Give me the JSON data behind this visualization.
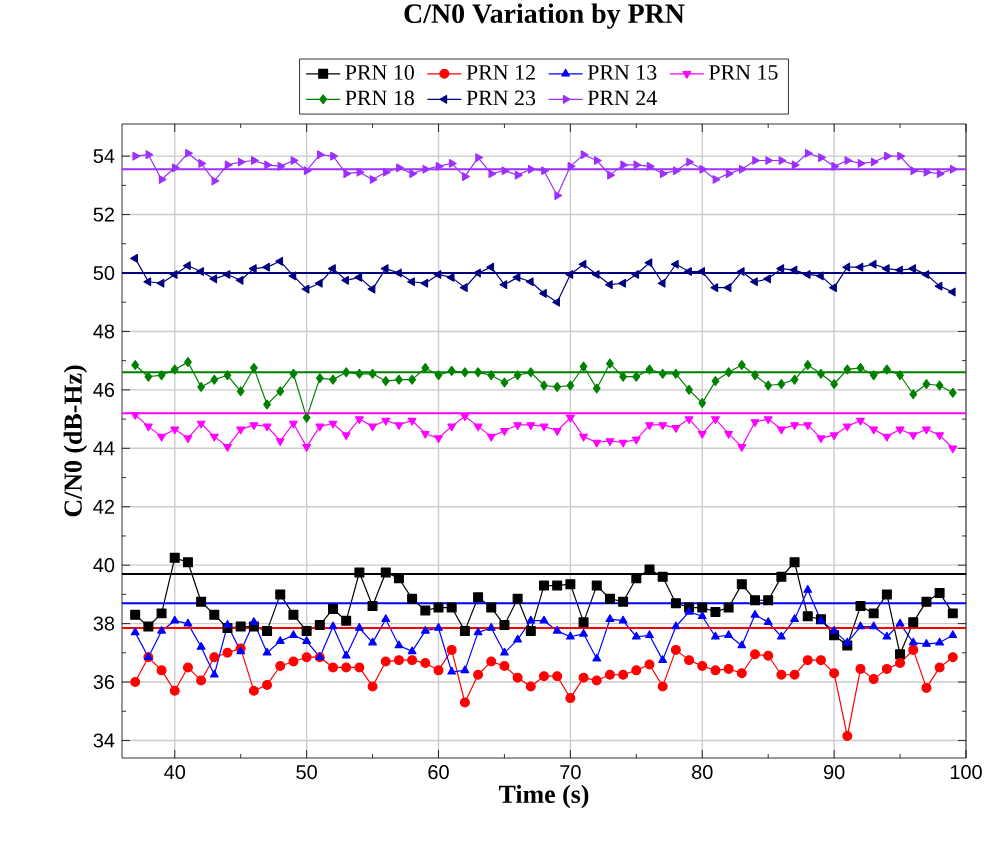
{
  "chart_data": {
    "type": "line",
    "title": "C/N0 Variation by PRN",
    "xlabel": "Time (s)",
    "ylabel": "C/N0 (dB-Hz)",
    "x": [
      37,
      38,
      39,
      40,
      41,
      42,
      43,
      44,
      45,
      46,
      47,
      48,
      49,
      50,
      51,
      52,
      53,
      54,
      55,
      56,
      57,
      58,
      59,
      60,
      61,
      62,
      63,
      64,
      65,
      66,
      67,
      68,
      69,
      70,
      71,
      72,
      73,
      74,
      75,
      76,
      77,
      78,
      79,
      80,
      81,
      82,
      83,
      84,
      85,
      86,
      87,
      88,
      89,
      90,
      91,
      92,
      93,
      94,
      95,
      96,
      97,
      98,
      99
    ],
    "xlim": [
      36,
      100
    ],
    "ylim": [
      33.4,
      55.1
    ],
    "xticks": [
      40,
      50,
      60,
      70,
      80,
      90,
      100
    ],
    "yticks": [
      34,
      36,
      38,
      40,
      42,
      44,
      46,
      48,
      50,
      52,
      54
    ],
    "grid": true,
    "legend": "top",
    "line_style": "solid",
    "series": [
      {
        "name": "PRN 10",
        "color": "#000000",
        "marker": "square",
        "values": [
          38.3,
          37.9,
          38.35,
          40.25,
          40.1,
          38.75,
          38.3,
          37.85,
          37.9,
          37.9,
          37.75,
          39.0,
          38.3,
          37.75,
          37.95,
          38.5,
          38.1,
          39.75,
          38.6,
          39.75,
          39.55,
          38.85,
          38.45,
          38.55,
          38.55,
          37.75,
          38.9,
          38.55,
          37.95,
          38.85,
          37.75,
          39.3,
          39.3,
          39.35,
          38.05,
          39.3,
          38.85,
          38.75,
          39.55,
          39.85,
          39.6,
          38.7,
          38.55,
          38.55,
          38.4,
          38.55,
          39.35,
          38.8,
          38.8,
          39.6,
          40.1,
          38.25,
          38.15,
          37.6,
          37.25,
          38.6,
          38.35,
          39.0,
          36.95,
          38.05,
          38.75,
          39.05,
          38.35
        ]
      },
      {
        "name": "PRN 12",
        "color": "#ff0000",
        "marker": "circle",
        "values": [
          36.0,
          36.85,
          36.4,
          35.7,
          36.5,
          36.05,
          36.85,
          37.0,
          37.15,
          35.7,
          35.9,
          36.55,
          36.7,
          36.85,
          36.85,
          36.5,
          36.5,
          36.5,
          35.85,
          36.7,
          36.75,
          36.75,
          36.65,
          36.4,
          37.1,
          35.3,
          36.25,
          36.7,
          36.55,
          36.15,
          35.85,
          36.2,
          36.2,
          35.45,
          36.15,
          36.05,
          36.25,
          36.25,
          36.4,
          36.6,
          35.85,
          37.1,
          36.75,
          36.55,
          36.4,
          36.45,
          36.3,
          36.95,
          36.9,
          36.25,
          36.25,
          36.75,
          36.75,
          36.3,
          34.15,
          36.45,
          36.1,
          36.45,
          36.65,
          37.1,
          35.8,
          36.5,
          36.85
        ]
      },
      {
        "name": "PRN 13",
        "color": "#0000ff",
        "marker": "triangle",
        "values": [
          37.7,
          36.85,
          37.75,
          38.1,
          38.0,
          37.2,
          36.25,
          37.95,
          37.05,
          38.05,
          37.0,
          37.4,
          37.6,
          37.4,
          36.85,
          37.9,
          36.9,
          37.85,
          37.35,
          38.15,
          37.25,
          37.05,
          37.75,
          37.85,
          36.35,
          36.4,
          37.7,
          37.85,
          37.0,
          37.45,
          38.1,
          38.1,
          37.75,
          37.55,
          37.65,
          36.8,
          38.15,
          38.1,
          37.55,
          37.6,
          36.75,
          37.9,
          38.4,
          38.25,
          37.55,
          37.6,
          37.25,
          38.3,
          38.05,
          37.55,
          38.15,
          39.15,
          38.1,
          37.75,
          37.35,
          37.9,
          37.9,
          37.55,
          38.0,
          37.35,
          37.3,
          37.35,
          37.6
        ]
      },
      {
        "name": "PRN 15",
        "color": "#ff00ff",
        "marker": "triangle down",
        "values": [
          45.15,
          44.75,
          44.4,
          44.65,
          44.35,
          44.85,
          44.4,
          44.05,
          44.65,
          44.8,
          44.75,
          44.25,
          44.85,
          44.05,
          44.75,
          44.85,
          44.45,
          45.0,
          44.75,
          44.95,
          44.8,
          44.95,
          44.5,
          44.35,
          44.75,
          45.1,
          44.75,
          44.4,
          44.6,
          44.8,
          44.8,
          44.75,
          44.6,
          45.05,
          44.4,
          44.2,
          44.25,
          44.2,
          44.3,
          44.8,
          44.8,
          44.7,
          45.0,
          44.5,
          45.0,
          44.5,
          44.05,
          44.9,
          45.0,
          44.65,
          44.8,
          44.8,
          44.35,
          44.45,
          44.75,
          44.95,
          44.65,
          44.4,
          44.65,
          44.45,
          44.65,
          44.45,
          44.0
        ]
      },
      {
        "name": "PRN 18",
        "color": "#008000",
        "marker": "diamond",
        "values": [
          46.85,
          46.45,
          46.5,
          46.7,
          46.95,
          46.1,
          46.35,
          46.5,
          45.95,
          46.75,
          45.5,
          45.95,
          46.55,
          45.05,
          46.4,
          46.35,
          46.6,
          46.55,
          46.55,
          46.3,
          46.35,
          46.35,
          46.75,
          46.5,
          46.65,
          46.6,
          46.6,
          46.5,
          46.25,
          46.5,
          46.6,
          46.15,
          46.1,
          46.15,
          46.8,
          46.05,
          46.9,
          46.45,
          46.45,
          46.7,
          46.55,
          46.55,
          46.0,
          45.55,
          46.3,
          46.6,
          46.85,
          46.5,
          46.15,
          46.2,
          46.35,
          46.85,
          46.55,
          46.2,
          46.7,
          46.75,
          46.5,
          46.7,
          46.5,
          45.85,
          46.2,
          46.15,
          45.9
        ]
      },
      {
        "name": "PRN 23",
        "color": "#000080",
        "marker": "triangle left",
        "values": [
          50.5,
          49.7,
          49.65,
          49.95,
          50.25,
          50.05,
          49.8,
          49.95,
          49.75,
          50.15,
          50.2,
          50.4,
          49.9,
          49.45,
          49.65,
          50.15,
          49.75,
          49.85,
          49.45,
          50.15,
          50.0,
          49.7,
          49.65,
          49.95,
          49.85,
          49.5,
          50.0,
          50.2,
          49.6,
          49.85,
          49.7,
          49.3,
          49.0,
          49.95,
          50.3,
          49.95,
          49.6,
          49.65,
          49.95,
          50.35,
          49.65,
          50.3,
          50.05,
          50.05,
          49.5,
          49.5,
          50.05,
          49.7,
          49.8,
          50.15,
          50.1,
          49.95,
          49.9,
          49.5,
          50.2,
          50.2,
          50.3,
          50.15,
          50.1,
          50.15,
          49.95,
          49.55,
          49.35
        ]
      },
      {
        "name": "PRN 24",
        "color": "#9b30ff",
        "marker": "triangle right",
        "values": [
          54.0,
          54.05,
          53.2,
          53.6,
          54.1,
          53.75,
          53.15,
          53.7,
          53.8,
          53.85,
          53.7,
          53.65,
          53.85,
          53.5,
          54.05,
          54.0,
          53.4,
          53.45,
          53.2,
          53.45,
          53.6,
          53.4,
          53.55,
          53.65,
          53.75,
          53.3,
          53.95,
          53.4,
          53.5,
          53.35,
          53.55,
          53.5,
          52.65,
          53.65,
          54.05,
          53.85,
          53.35,
          53.7,
          53.7,
          53.65,
          53.4,
          53.5,
          53.8,
          53.55,
          53.2,
          53.4,
          53.55,
          53.85,
          53.85,
          53.85,
          53.7,
          54.1,
          53.95,
          53.65,
          53.85,
          53.75,
          53.8,
          54.0,
          54.0,
          53.5,
          53.45,
          53.4,
          53.55
        ]
      }
    ],
    "ref_lines": [
      {
        "axis": "y",
        "value": 39.7,
        "color": "#000000"
      },
      {
        "axis": "y",
        "value": 38.7,
        "color": "#0000ff"
      },
      {
        "axis": "y",
        "value": 37.85,
        "color": "#ff0000"
      },
      {
        "axis": "y",
        "value": 45.2,
        "color": "#ff00ff"
      },
      {
        "axis": "y",
        "value": 46.6,
        "color": "#008000"
      },
      {
        "axis": "y",
        "value": 50.0,
        "color": "#000080"
      },
      {
        "axis": "y",
        "value": 53.55,
        "color": "#9b30ff"
      }
    ]
  }
}
